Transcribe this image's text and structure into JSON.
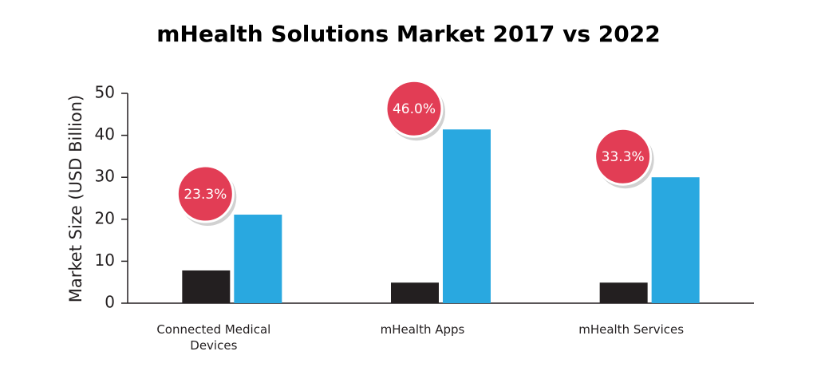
{
  "chart_data": {
    "type": "bar",
    "title": "mHealth Solutions Market 2017 vs 2022",
    "y_label": "Market Size (USD Billion)",
    "categories": [
      "Connected Medical Devices",
      "mHealth Apps",
      "mHealth Services"
    ],
    "series": [
      {
        "color": "#231f20",
        "values": [
          7.8,
          4.9,
          4.9
        ]
      },
      {
        "color": "#29a8e0",
        "values": [
          21.1,
          41.4,
          30.0
        ]
      }
    ],
    "annotations": [
      "23.3%",
      "46.0%",
      "33.3%"
    ],
    "annotation_color": "#e23d55",
    "ylim": [
      0,
      50
    ],
    "yticks": [
      0,
      10,
      20,
      30,
      40,
      50
    ],
    "grid": false
  }
}
